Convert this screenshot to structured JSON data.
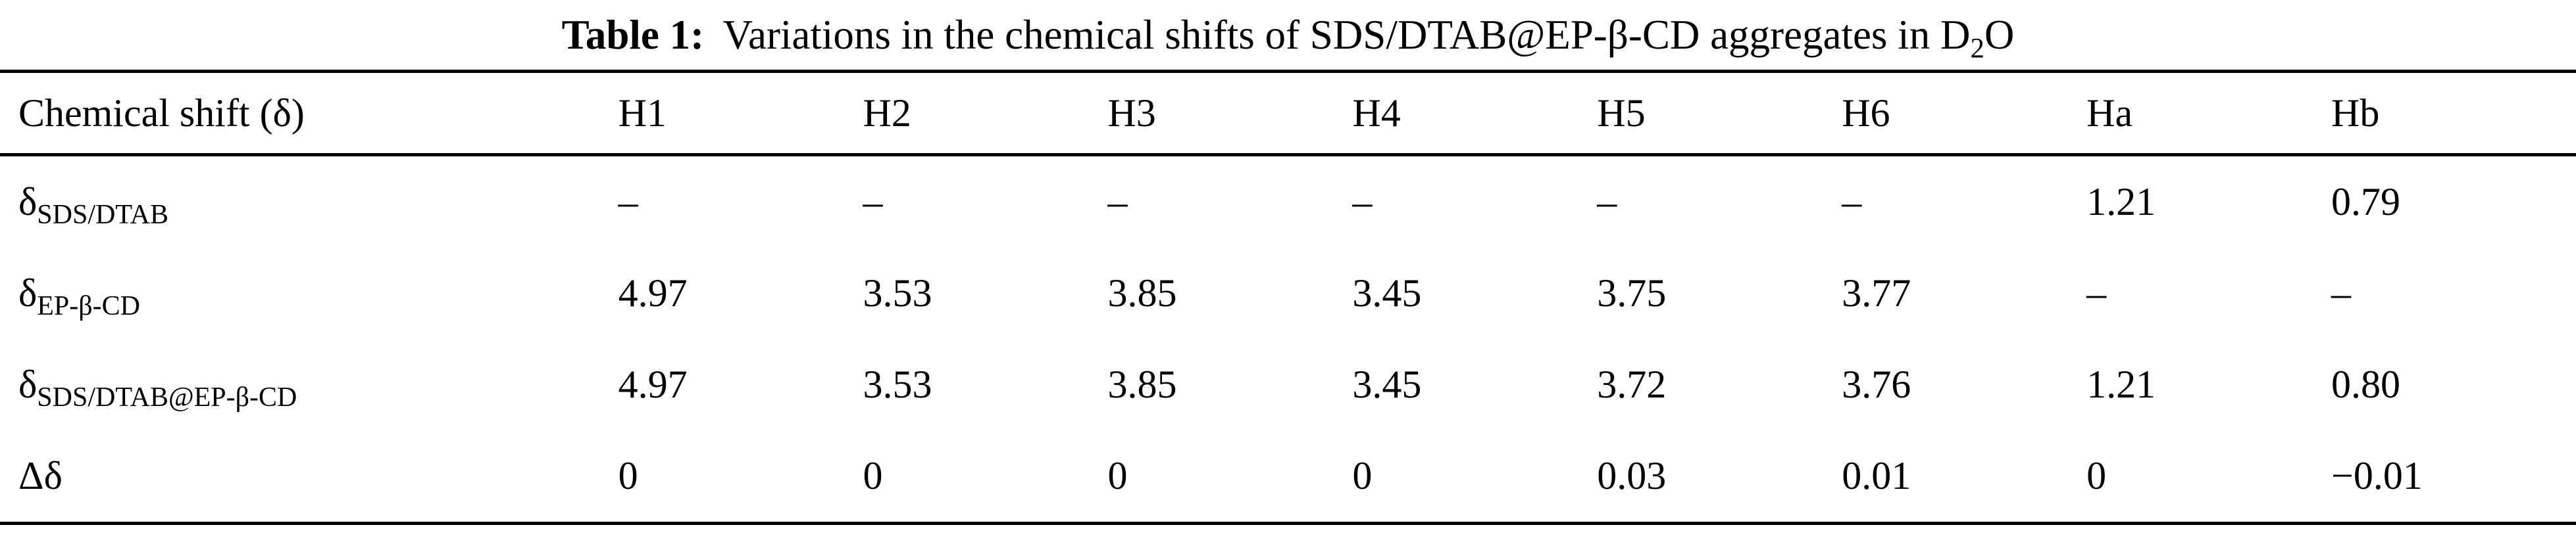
{
  "caption": {
    "label": "Table 1:",
    "body": "Variations in the chemical shifts of SDS/DTAB@EP-β-CD aggregates in D",
    "sub": "2",
    "tail": "O"
  },
  "table": {
    "header": [
      "Chemical shift (δ)",
      "H1",
      "H2",
      "H3",
      "H4",
      "H5",
      "H6",
      "Ha",
      "Hb"
    ],
    "rows": [
      {
        "label_main": "δ",
        "label_sub": "SDS/DTAB",
        "values": [
          "–",
          "–",
          "–",
          "–",
          "–",
          "–",
          "1.21",
          "0.79"
        ]
      },
      {
        "label_main": "δ",
        "label_sub": "EP-β-CD",
        "values": [
          "4.97",
          "3.53",
          "3.85",
          "3.45",
          "3.75",
          "3.77",
          "–",
          "–"
        ]
      },
      {
        "label_main": "δ",
        "label_sub": "SDS/DTAB@EP-β-CD",
        "values": [
          "4.97",
          "3.53",
          "3.85",
          "3.45",
          "3.72",
          "3.76",
          "1.21",
          "0.80"
        ]
      },
      {
        "label_main": "Δδ",
        "label_sub": "",
        "values": [
          "0",
          "0",
          "0",
          "0",
          "0.03",
          "0.01",
          "0",
          "−0.01"
        ]
      }
    ]
  }
}
